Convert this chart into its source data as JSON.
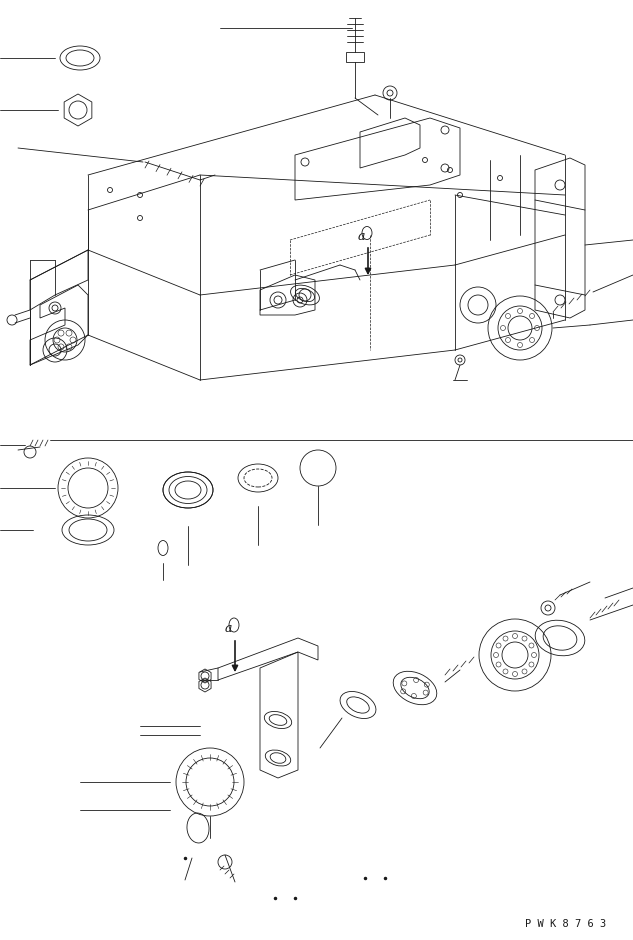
{
  "bg_color": "#ffffff",
  "line_color": "#1a1a1a",
  "line_width": 0.6,
  "watermark": "P W K 8 7 6 3",
  "fig_width": 6.33,
  "fig_height": 9.4
}
